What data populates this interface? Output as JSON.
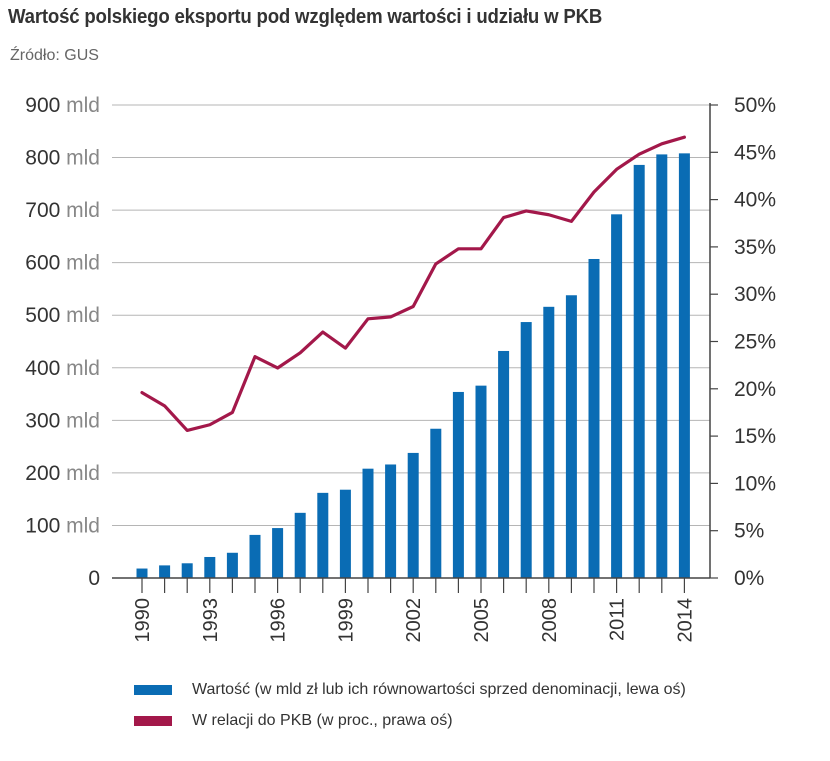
{
  "header": {
    "title": "Wartość polskiego eksportu pod względem wartości i udziału w PKB",
    "source": "Źródło: GUS"
  },
  "colors": {
    "bars": "#0a6cb4",
    "line": "#a3184a",
    "grid": "#b5b5b5",
    "axis": "#444444"
  },
  "chart_data": {
    "type": "bar",
    "title": "Wartość polskiego eksportu pod względem wartości i udziału w PKB",
    "years": [
      1990,
      1991,
      1992,
      1993,
      1994,
      1995,
      1996,
      1997,
      1998,
      1999,
      2000,
      2001,
      2002,
      2003,
      2004,
      2005,
      2006,
      2007,
      2008,
      2009,
      2010,
      2011,
      2012,
      2013,
      2014
    ],
    "x_tick_labels": [
      "1990",
      "1993",
      "1996",
      "1999",
      "2002",
      "2005",
      "2008",
      "2011",
      "2014"
    ],
    "y_left": {
      "ylim": [
        0,
        900
      ],
      "ticks": [
        0,
        100,
        200,
        300,
        400,
        500,
        600,
        700,
        800,
        900
      ],
      "tick_numbers": [
        "0",
        "100",
        "200",
        "300",
        "400",
        "500",
        "600",
        "700",
        "800",
        "900"
      ],
      "unit": "mld"
    },
    "y_right": {
      "ylim": [
        0,
        50
      ],
      "ticks": [
        0,
        5,
        10,
        15,
        20,
        25,
        30,
        35,
        40,
        45,
        50
      ],
      "tick_labels": [
        "0%",
        "5%",
        "10%",
        "15%",
        "20%",
        "25%",
        "30%",
        "35%",
        "40%",
        "45%",
        "50%"
      ]
    },
    "grid": true,
    "legend_position": "bottom",
    "series": [
      {
        "name": "Wartość (w mld zł lub ich równowartości sprzed denominacji, lewa oś)",
        "type": "bar",
        "axis": "left",
        "values": [
          18,
          24,
          28,
          40,
          48,
          82,
          95,
          124,
          162,
          168,
          208,
          216,
          238,
          284,
          354,
          366,
          432,
          487,
          516,
          538,
          607,
          692,
          786,
          806,
          808
        ]
      },
      {
        "name": "W relacji do PKB (w proc., prawa oś)",
        "type": "line",
        "axis": "right",
        "values": [
          19.6,
          18.2,
          15.6,
          16.2,
          17.5,
          23.4,
          22.2,
          23.8,
          26.0,
          24.3,
          27.4,
          27.6,
          28.7,
          33.2,
          34.8,
          34.8,
          38.1,
          38.8,
          38.4,
          37.7,
          40.8,
          43.2,
          44.8,
          45.9,
          46.6
        ]
      }
    ]
  }
}
